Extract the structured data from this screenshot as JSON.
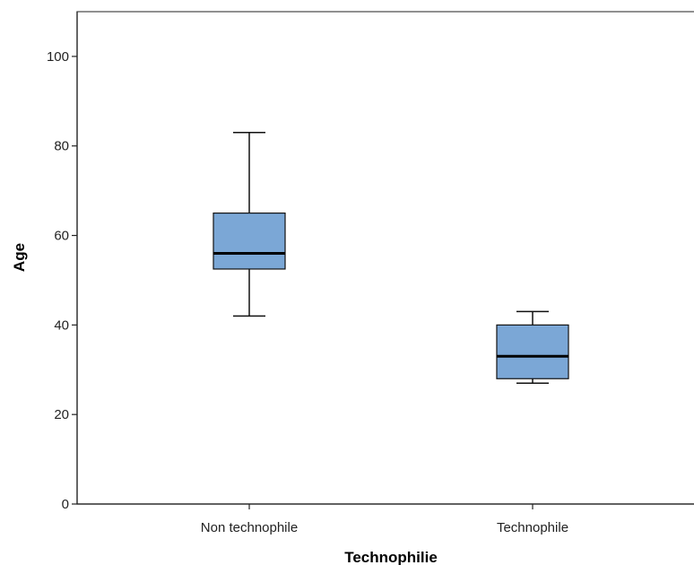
{
  "chart_data": {
    "type": "boxplot",
    "xlabel": "Technophilie",
    "ylabel": "Age",
    "ylim": [
      0,
      110
    ],
    "yticks": [
      0,
      20,
      40,
      60,
      80,
      100
    ],
    "ytick_labels": [
      "0",
      "20",
      "40",
      "60",
      "80",
      "100"
    ],
    "categories": [
      "Non technophile",
      "Technophile"
    ],
    "boxes": [
      {
        "category": "Non technophile",
        "min": 42,
        "q1": 52.5,
        "median": 56,
        "q3": 65,
        "max": 83
      },
      {
        "category": "Technophile",
        "min": 27,
        "q1": 28,
        "median": 33,
        "q3": 40,
        "max": 43
      }
    ],
    "box_color": "#7BA7D6",
    "grid": false,
    "legend": "none"
  }
}
